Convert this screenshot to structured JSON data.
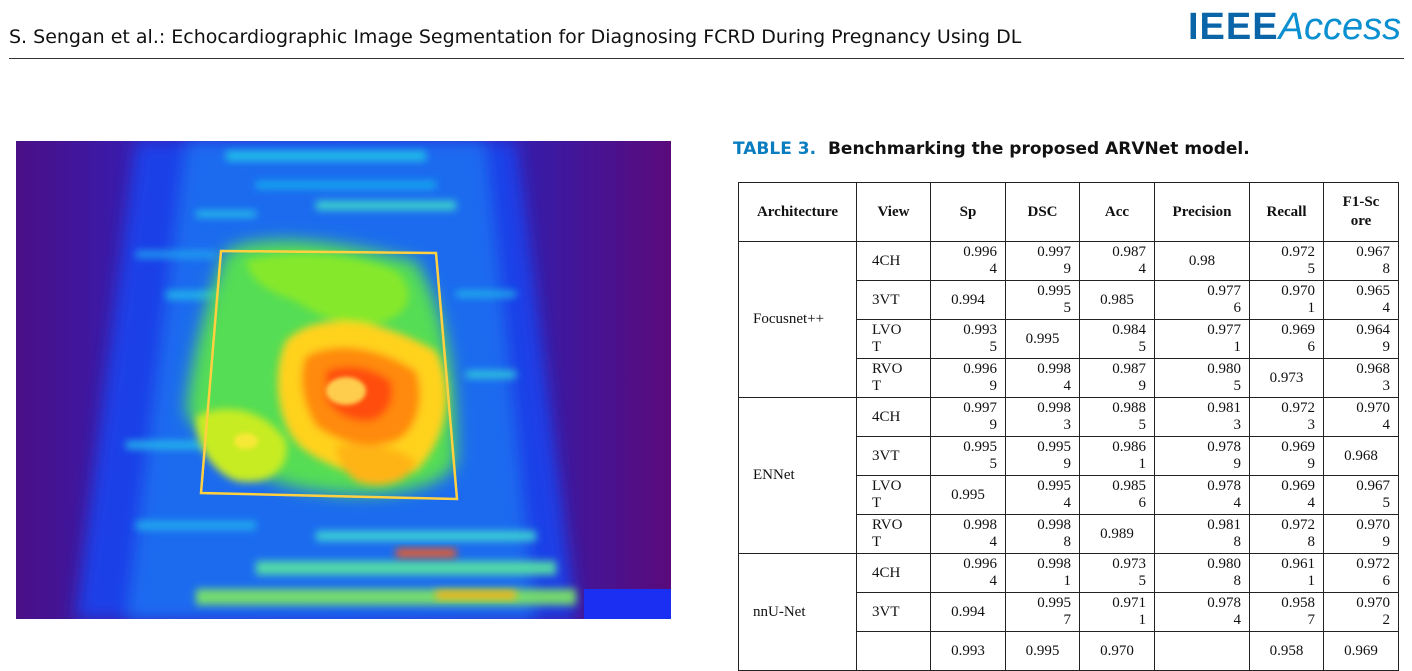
{
  "header": {
    "running_title": "S. Sengan et al.: Echocardiographic Image Segmentation for Diagnosing FCRD During Pregnancy Using DL",
    "logo_ieee": "IEEE",
    "logo_access": "Access"
  },
  "figure": {
    "caption_partial": "... ... ... ... ... ... ... ... ... ... ... ..."
  },
  "table": {
    "number": "TABLE 3.",
    "title": "Benchmarking the proposed ARVNet model.",
    "columns": [
      "Architecture",
      "View",
      "Sp",
      "DSC",
      "Acc",
      "Precision",
      "Recall",
      "F1-Score"
    ],
    "groups": [
      {
        "architecture": "Focusnet++",
        "rows": [
          {
            "view": "4CH",
            "sp": "0.9964",
            "dsc": "0.9979",
            "acc": "0.9874",
            "precision": "0.98",
            "recall": "0.9725",
            "f1": "0.9678"
          },
          {
            "view": "3VT",
            "sp": "0.994",
            "dsc": "0.9955",
            "acc": "0.985",
            "precision": "0.9776",
            "recall": "0.9701",
            "f1": "0.9654"
          },
          {
            "view": "LVOT",
            "sp": "0.9935",
            "dsc": "0.995",
            "acc": "0.9845",
            "precision": "0.9771",
            "recall": "0.9696",
            "f1": "0.9649"
          },
          {
            "view": "RVOT",
            "sp": "0.9969",
            "dsc": "0.9984",
            "acc": "0.9879",
            "precision": "0.9805",
            "recall": "0.973",
            "f1": "0.9683"
          }
        ]
      },
      {
        "architecture": "ENNet",
        "rows": [
          {
            "view": "4CH",
            "sp": "0.9979",
            "dsc": "0.9983",
            "acc": "0.9885",
            "precision": "0.9813",
            "recall": "0.9723",
            "f1": "0.9704"
          },
          {
            "view": "3VT",
            "sp": "0.9955",
            "dsc": "0.9959",
            "acc": "0.9861",
            "precision": "0.9789",
            "recall": "0.9699",
            "f1": "0.968"
          },
          {
            "view": "LVOT",
            "sp": "0.995",
            "dsc": "0.9954",
            "acc": "0.9856",
            "precision": "0.9784",
            "recall": "0.9694",
            "f1": "0.9675"
          },
          {
            "view": "RVOT",
            "sp": "0.9984",
            "dsc": "0.9988",
            "acc": "0.989",
            "precision": "0.9818",
            "recall": "0.9728",
            "f1": "0.9709"
          }
        ]
      },
      {
        "architecture": "nnU-Net",
        "rows": [
          {
            "view": "4CH",
            "sp": "0.9964",
            "dsc": "0.9981",
            "acc": "0.9735",
            "precision": "0.9808",
            "recall": "0.9611",
            "f1": "0.9726"
          },
          {
            "view": "3VT",
            "sp": "0.994",
            "dsc": "0.9957",
            "acc": "0.9711",
            "precision": "0.9784",
            "recall": "0.9587",
            "f1": "0.9702"
          },
          {
            "view": "",
            "sp": "0.993",
            "dsc": "0.995",
            "acc": "0.970",
            "precision": "",
            "recall": "0.958",
            "f1": "0.969"
          }
        ]
      }
    ]
  }
}
